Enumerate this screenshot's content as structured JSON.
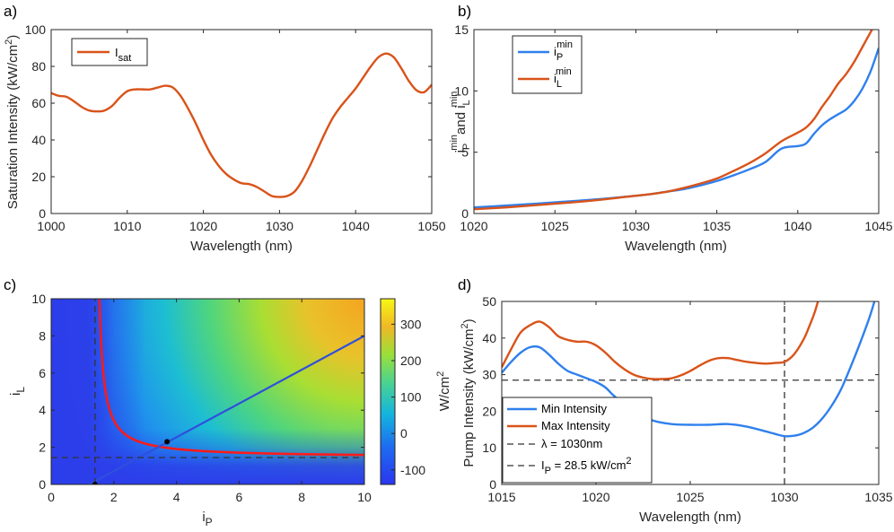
{
  "colors": {
    "red": "#D95319",
    "blue": "#2F80ED",
    "black": "#262626",
    "grid": "#000000"
  },
  "chart_data": [
    {
      "panel": "a)",
      "type": "line",
      "xlabel": "Wavelength (nm)",
      "ylabel": "Saturation Intensity (kW/cm²)",
      "xlim": [
        1000,
        1050
      ],
      "ylim": [
        0,
        100
      ],
      "xticks": [
        1000,
        1010,
        1020,
        1030,
        1040,
        1050
      ],
      "yticks": [
        0,
        20,
        40,
        60,
        80,
        100
      ],
      "legend_position": "top-left",
      "series": [
        {
          "name": "I_sat",
          "legend_main": "I",
          "legend_sub": "sat",
          "color": "#D95319",
          "x": [
            1000,
            1001,
            1002,
            1003,
            1004,
            1005,
            1006,
            1007,
            1008,
            1009,
            1010,
            1011,
            1012,
            1013,
            1014,
            1015,
            1016,
            1017,
            1018,
            1019,
            1020,
            1021,
            1022,
            1023,
            1024,
            1025,
            1026,
            1027,
            1028,
            1029,
            1030,
            1031,
            1032,
            1033,
            1034,
            1035,
            1036,
            1037,
            1038,
            1039,
            1040,
            1041,
            1042,
            1043,
            1044,
            1045,
            1046,
            1047,
            1048,
            1049,
            1050
          ],
          "y": [
            65.5,
            64,
            63.5,
            61,
            58,
            56,
            55.5,
            56,
            58.5,
            63,
            66.5,
            67.5,
            67.5,
            67.5,
            68.5,
            69.5,
            68.5,
            64,
            57,
            49,
            40,
            32,
            26,
            21.5,
            18.5,
            16.5,
            16,
            14.5,
            12,
            9.5,
            9,
            9.5,
            12,
            18,
            26,
            35,
            44,
            52,
            58,
            63,
            68,
            74,
            80,
            85,
            87,
            85,
            79,
            72,
            67,
            66,
            70
          ]
        }
      ]
    },
    {
      "panel": "b)",
      "type": "line",
      "xlabel": "Wavelength (nm)",
      "ylabel_parts": [
        "i",
        "P",
        "min",
        "and i",
        "L",
        "min"
      ],
      "xlim": [
        1020,
        1045
      ],
      "ylim": [
        0,
        15
      ],
      "xticks": [
        1020,
        1025,
        1030,
        1035,
        1040,
        1045
      ],
      "yticks": [
        0,
        5,
        10,
        15
      ],
      "legend_position": "top-left",
      "series": [
        {
          "name": "i_P^min",
          "legend_main": "i",
          "legend_sub": "P",
          "legend_sup": "min",
          "color": "#2F80ED",
          "x": [
            1020,
            1022,
            1024,
            1026,
            1028,
            1030,
            1031,
            1032,
            1033,
            1034,
            1035,
            1036,
            1037,
            1038,
            1039,
            1040,
            1040.5,
            1041,
            1041.5,
            1042,
            1042.5,
            1043,
            1043.5,
            1044,
            1044.5,
            1045
          ],
          "y": [
            0.5,
            0.65,
            0.82,
            1.0,
            1.2,
            1.45,
            1.6,
            1.8,
            2.0,
            2.3,
            2.65,
            3.1,
            3.6,
            4.2,
            5.3,
            5.5,
            5.7,
            6.5,
            7.2,
            7.7,
            8.1,
            8.5,
            9.2,
            10.2,
            11.6,
            13.5
          ]
        },
        {
          "name": "i_L^min",
          "legend_main": "i",
          "legend_sub": "L",
          "legend_sup": "min",
          "color": "#D95319",
          "x": [
            1020,
            1022,
            1024,
            1026,
            1028,
            1030,
            1031,
            1032,
            1033,
            1034,
            1035,
            1036,
            1037,
            1038,
            1039,
            1040,
            1040.5,
            1041,
            1041.5,
            1042,
            1042.5,
            1043,
            1043.5,
            1044,
            1044.5,
            1044.8
          ],
          "y": [
            0.35,
            0.5,
            0.7,
            0.9,
            1.15,
            1.45,
            1.6,
            1.8,
            2.1,
            2.45,
            2.85,
            3.45,
            4.1,
            4.9,
            5.9,
            6.6,
            7.0,
            7.7,
            8.7,
            9.6,
            10.6,
            11.4,
            12.4,
            13.6,
            14.8,
            15.5
          ]
        }
      ]
    },
    {
      "panel": "c)",
      "type": "heatmap",
      "xlabel": "i_P",
      "xlabel_main": "i",
      "xlabel_sub": "P",
      "ylabel": "i_L",
      "ylabel_main": "i",
      "ylabel_sub": "L",
      "xlim": [
        0,
        10
      ],
      "ylim": [
        0,
        10
      ],
      "xticks": [
        0,
        2,
        4,
        6,
        8,
        10
      ],
      "yticks": [
        0,
        2,
        4,
        6,
        8,
        10
      ],
      "colorbar": {
        "label": "W/cm²",
        "label_main": "W/cm",
        "label_sup": "2",
        "range": [
          -140,
          370
        ],
        "ticks": [
          -100,
          0,
          100,
          200,
          300
        ]
      },
      "threshold_curve": {
        "color": "#FF1A1A",
        "asymptote_x": 1.4,
        "asymptote_y": 1.45
      },
      "diagonal_line": {
        "color": "#2F4FDD",
        "x": [
          0,
          10
        ],
        "y": [
          -1.1,
          8.0
        ]
      },
      "points": [
        {
          "x": 1.4,
          "y": 0
        },
        {
          "x": 3.7,
          "y": 2.3
        }
      ],
      "dashed_lines": {
        "vertical_x": 1.4,
        "horizontal_y": 1.45
      }
    },
    {
      "panel": "d)",
      "type": "line",
      "xlabel": "Wavelength (nm)",
      "ylabel": "Pump Intensity (kW/cm²)",
      "xlim": [
        1015,
        1035
      ],
      "ylim": [
        0,
        50
      ],
      "xticks": [
        1015,
        1020,
        1025,
        1030,
        1035
      ],
      "yticks": [
        0,
        10,
        20,
        30,
        40,
        50
      ],
      "legend_position": "bottom-left",
      "series": [
        {
          "name": "Min Intensity",
          "color": "#2F80ED",
          "x": [
            1015,
            1015.5,
            1016,
            1016.5,
            1017,
            1017.5,
            1018,
            1018.5,
            1019,
            1019.5,
            1020,
            1020.5,
            1021,
            1022,
            1023,
            1024,
            1025,
            1026,
            1027,
            1028,
            1029,
            1029.5,
            1030,
            1030.5,
            1031,
            1031.5,
            1032,
            1032.5,
            1033,
            1033.5,
            1034,
            1034.5,
            1034.8
          ],
          "y": [
            30.5,
            33.5,
            36,
            37.5,
            37.5,
            35.5,
            33,
            31,
            30,
            29,
            28,
            26.5,
            24,
            20,
            17.5,
            16.5,
            16.3,
            16.3,
            16.5,
            15.8,
            14.5,
            13.8,
            13.2,
            13.3,
            14,
            15.5,
            18,
            21.5,
            26,
            32,
            38.5,
            45.5,
            50.5
          ]
        },
        {
          "name": "Max Intensity",
          "color": "#D95319",
          "x": [
            1015,
            1015.5,
            1016,
            1016.5,
            1017,
            1017.5,
            1018,
            1018.5,
            1019,
            1019.5,
            1020,
            1020.5,
            1021,
            1021.5,
            1022,
            1022.5,
            1023,
            1023.5,
            1024,
            1024.5,
            1025,
            1025.5,
            1026,
            1026.5,
            1027,
            1027.5,
            1028,
            1028.5,
            1029,
            1029.5,
            1030,
            1030.5,
            1031,
            1031.3,
            1031.6,
            1031.8
          ],
          "y": [
            32,
            37,
            41.5,
            43.5,
            44.5,
            43,
            40.5,
            39.5,
            39,
            39,
            38,
            36,
            33.5,
            31.5,
            30,
            29.2,
            28.8,
            28.8,
            29,
            29.8,
            31,
            32.5,
            33.8,
            34.5,
            34.5,
            34,
            33.5,
            33.2,
            33,
            33.2,
            33.5,
            35.5,
            39.5,
            43,
            47,
            50.5
          ]
        }
      ],
      "reference_lines": [
        {
          "name": "λ = 1030nm",
          "orientation": "vertical",
          "x": 1030
        },
        {
          "name": "I_P = 28.5 kW/cm²",
          "orientation": "horizontal",
          "y": 28.5
        }
      ],
      "legend_entries": [
        "Min Intensity",
        "Max Intensity",
        "λ = 1030nm",
        "I_P = 28.5 kW/cm²"
      ],
      "legend_ip_main": "I",
      "legend_ip_sub": "P",
      "legend_ip_rest": " = 28.5 kW/cm",
      "legend_ip_sup": "2",
      "legend_lambda_text": "λ = 1030nm"
    }
  ],
  "ylabel_a_main": "Saturation Intensity (kW/cm",
  "ylabel_a_sup": "2",
  "ylabel_a_end": ")",
  "ylabel_d_main": "Pump Intensity (kW/cm",
  "ylabel_d_sup": "2",
  "ylabel_d_end": ")"
}
